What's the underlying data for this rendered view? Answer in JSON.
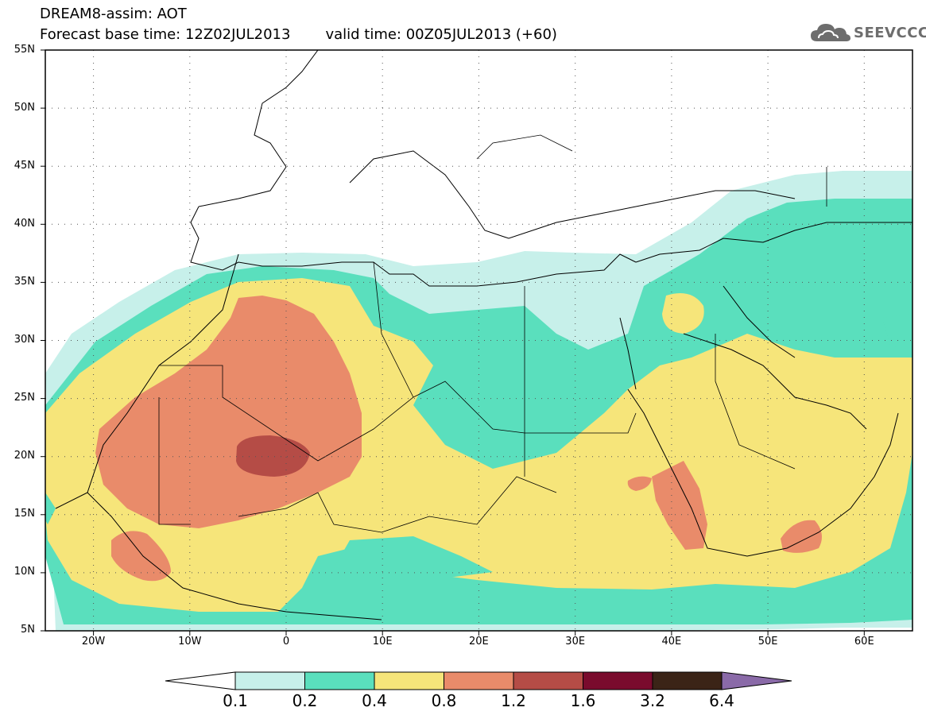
{
  "header": {
    "title": "DREAM8-assim: AOT",
    "base_time_label": "Forecast base time: 12Z02JUL2013",
    "valid_time_label": "valid time: 00Z05JUL2013 (+60)"
  },
  "logo": {
    "text": "SEEVCCC",
    "icon": "cloud-icon",
    "color": "#6d6d6d"
  },
  "map": {
    "region": "North Africa, Mediterranean and Middle East",
    "variable": "AOT",
    "lat_range": [
      5,
      55
    ],
    "lon_range": [
      -25,
      65
    ],
    "lat_labels": [
      "55N",
      "50N",
      "45N",
      "40N",
      "35N",
      "30N",
      "25N",
      "20N",
      "15N",
      "10N",
      "5N"
    ],
    "lon_labels": [
      "20W",
      "10W",
      "0",
      "10E",
      "20E",
      "30E",
      "40E",
      "50E",
      "60E"
    ],
    "grid": "dotted"
  },
  "colorbar": {
    "labels": [
      "0.1",
      "0.2",
      "0.4",
      "0.8",
      "1.2",
      "1.6",
      "3.2",
      "6.4"
    ],
    "colors": [
      "#ffffff",
      "#c7f0ea",
      "#5adfbd",
      "#f6e57a",
      "#e98b6a",
      "#b54c46",
      "#7a0b2d",
      "#3b2417",
      "#8a6aa8"
    ]
  }
}
